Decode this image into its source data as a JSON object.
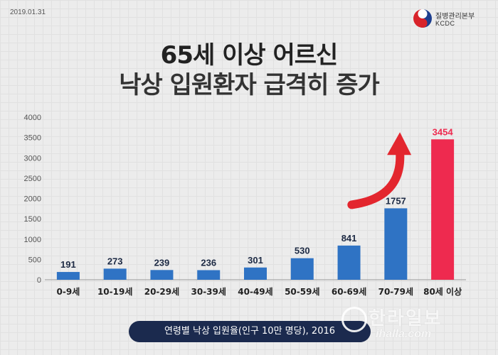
{
  "header": {
    "date": "2019.01.31",
    "org_name": "질병관리본부",
    "org_abbr": "KCDC",
    "title_line1": "65세 이상 어르신",
    "title_line2": "낙상 입원환자 급격히 증가"
  },
  "caption": "연령별 낙상 입원율(인구 10만 명당), 2016",
  "watermark": {
    "text_ko": "한라일보",
    "text_en": "ihalla.com"
  },
  "colors": {
    "bar": "#2f73c4",
    "highlight_bar": "#ee2a4f",
    "highlight_label": "#ee2a4f",
    "arrow": "#e3262e",
    "axis_text": "#555555"
  },
  "chart_data": {
    "type": "bar",
    "categories": [
      "0-9세",
      "10-19세",
      "20-29세",
      "30-39세",
      "40-49세",
      "50-59세",
      "60-69세",
      "70-79세",
      "80세 이상"
    ],
    "values": [
      191,
      273,
      239,
      236,
      301,
      530,
      841,
      1757,
      3454
    ],
    "highlight_index": 8,
    "ylim": [
      0,
      4000
    ],
    "yticks": [
      0,
      500,
      1000,
      1500,
      2000,
      2500,
      3000,
      3500,
      4000
    ],
    "title": "",
    "xlabel": "",
    "ylabel": "",
    "grid": false
  }
}
